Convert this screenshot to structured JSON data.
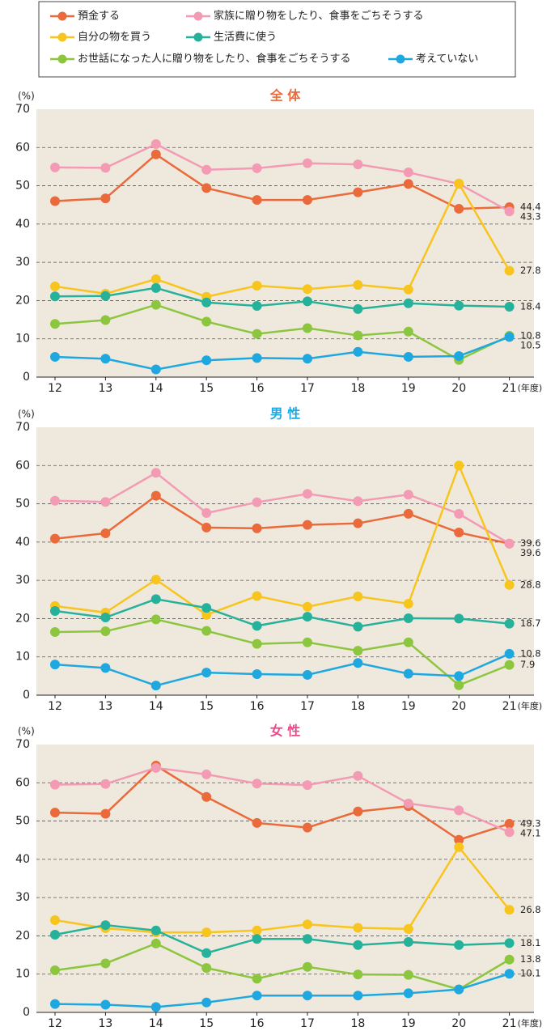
{
  "chart_data": [
    {
      "type": "line",
      "title": "全 体",
      "ylabel": "(%)",
      "xlabel": "(年度)",
      "title_color": "#ea6a3b",
      "categories": [
        "12",
        "13",
        "14",
        "15",
        "16",
        "17",
        "18",
        "19",
        "20",
        "21"
      ],
      "ylim": [
        0,
        70
      ],
      "yticks": [
        0,
        10,
        20,
        30,
        40,
        50,
        60,
        70
      ],
      "grid": true,
      "series": [
        {
          "name": "預金する",
          "color": "#ea6a3b",
          "values": [
            46.0,
            46.7,
            58.2,
            49.4,
            46.3,
            46.3,
            48.3,
            50.5,
            44.0,
            44.4
          ]
        },
        {
          "name": "家族に贈り物をしたり、食事をごちそうする",
          "color": "#f39bb4",
          "values": [
            54.8,
            54.7,
            60.9,
            54.2,
            54.6,
            55.9,
            55.6,
            53.5,
            50.5,
            43.3
          ]
        },
        {
          "name": "自分の物を買う",
          "color": "#f7c51e",
          "values": [
            23.7,
            21.8,
            25.6,
            21.0,
            23.9,
            23.0,
            24.1,
            22.9,
            50.6,
            27.8
          ]
        },
        {
          "name": "生活費に使う",
          "color": "#26b19a",
          "values": [
            21.1,
            21.2,
            23.3,
            19.5,
            18.6,
            19.8,
            17.8,
            19.3,
            18.7,
            18.4
          ]
        },
        {
          "name": "お世話になった人に贈り物をしたり、食事をごちそうする",
          "color": "#8cc63f",
          "values": [
            13.9,
            14.9,
            18.9,
            14.5,
            11.3,
            12.8,
            10.9,
            11.9,
            4.5,
            10.8
          ]
        },
        {
          "name": "考えていない",
          "color": "#1fa8e0",
          "values": [
            5.3,
            4.8,
            2.0,
            4.4,
            5.0,
            4.8,
            6.6,
            5.3,
            5.5,
            10.5
          ]
        }
      ]
    },
    {
      "type": "line",
      "title": "男 性",
      "ylabel": "(%)",
      "xlabel": "(年度)",
      "title_color": "#1fa8e0",
      "categories": [
        "12",
        "13",
        "14",
        "15",
        "16",
        "17",
        "18",
        "19",
        "20",
        "21"
      ],
      "ylim": [
        0,
        70
      ],
      "yticks": [
        0,
        10,
        20,
        30,
        40,
        50,
        60,
        70
      ],
      "grid": true,
      "series": [
        {
          "values": [
            40.9,
            42.3,
            52.1,
            43.8,
            43.6,
            44.5,
            44.9,
            47.4,
            42.5,
            39.6
          ]
        },
        {
          "values": [
            50.8,
            50.5,
            58.1,
            47.6,
            50.4,
            52.6,
            50.7,
            52.4,
            47.4,
            39.6
          ]
        },
        {
          "values": [
            23.3,
            21.6,
            30.2,
            21.0,
            25.9,
            23.1,
            25.8,
            23.9,
            60.0,
            28.8
          ]
        },
        {
          "values": [
            22.0,
            20.3,
            25.1,
            22.8,
            18.1,
            20.5,
            17.9,
            20.1,
            20.0,
            18.7
          ]
        },
        {
          "values": [
            16.5,
            16.7,
            19.8,
            16.8,
            13.4,
            13.8,
            11.6,
            13.8,
            2.6,
            7.9
          ]
        },
        {
          "values": [
            8.0,
            7.1,
            2.5,
            5.9,
            5.5,
            5.3,
            8.4,
            5.6,
            5.0,
            10.8
          ]
        }
      ]
    },
    {
      "type": "line",
      "title": "女 性",
      "ylabel": "(%)",
      "xlabel": "(年度)",
      "title_color": "#e74c8b",
      "categories": [
        "12",
        "13",
        "14",
        "15",
        "16",
        "17",
        "18",
        "19",
        "20",
        "21"
      ],
      "ylim": [
        0,
        70
      ],
      "yticks": [
        0,
        10,
        20,
        30,
        40,
        50,
        60,
        70
      ],
      "grid": true,
      "series": [
        {
          "values": [
            52.2,
            51.9,
            64.5,
            56.3,
            49.5,
            48.3,
            52.5,
            53.9,
            45.1,
            49.3
          ]
        },
        {
          "values": [
            59.5,
            59.7,
            63.9,
            62.2,
            59.8,
            59.4,
            61.8,
            54.6,
            52.8,
            47.1
          ]
        },
        {
          "values": [
            24.1,
            22.0,
            20.9,
            20.9,
            21.4,
            23.0,
            22.1,
            21.8,
            43.2,
            26.8
          ]
        },
        {
          "values": [
            20.3,
            22.8,
            21.4,
            15.5,
            19.2,
            19.2,
            17.6,
            18.4,
            17.6,
            18.1
          ]
        },
        {
          "values": [
            11.0,
            12.8,
            18.0,
            11.6,
            8.8,
            11.9,
            9.9,
            9.8,
            6.0,
            13.8
          ]
        },
        {
          "values": [
            2.2,
            2.0,
            1.4,
            2.6,
            4.4,
            4.4,
            4.4,
            5.0,
            6.0,
            10.1
          ]
        }
      ]
    }
  ]
}
